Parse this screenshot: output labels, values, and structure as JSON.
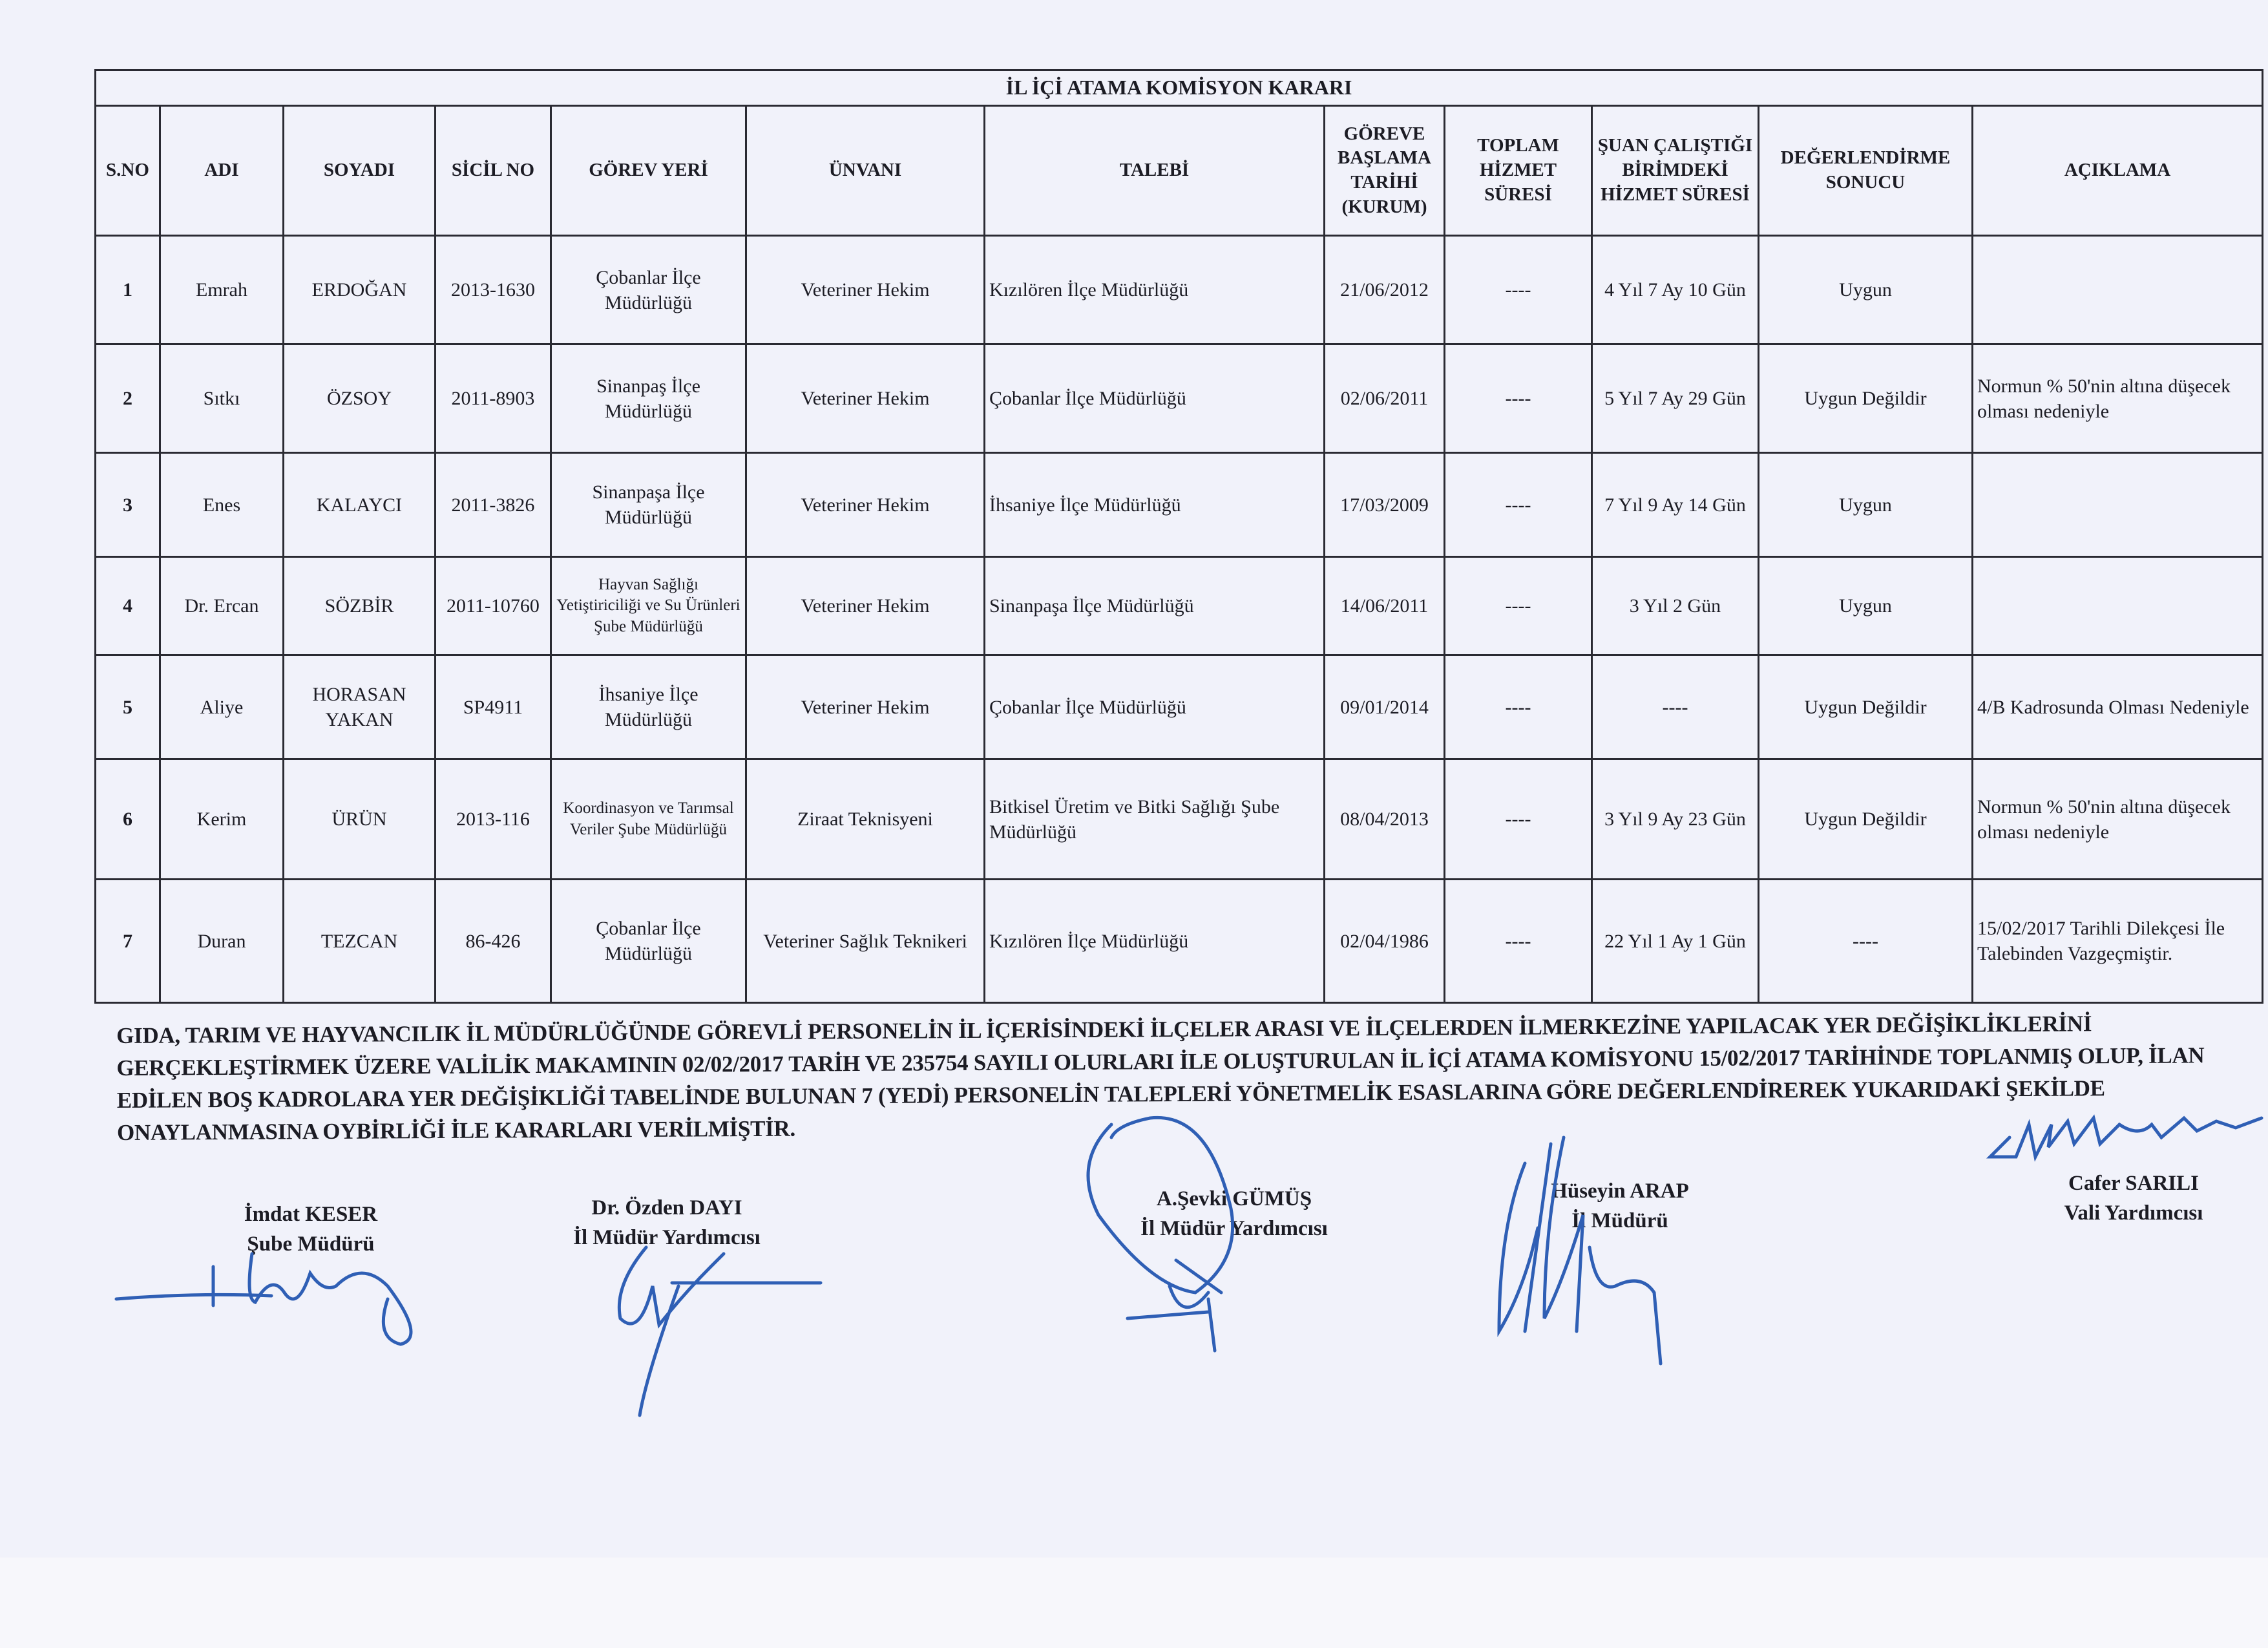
{
  "title": "İL İÇİ ATAMA KOMİSYON KARARI",
  "columns": [
    "S.NO",
    "ADI",
    "SOYADI",
    "SİCİL NO",
    "GÖREV YERİ",
    "ÜNVANI",
    "TALEBİ",
    "GÖREVE BAŞLAMA TARİHİ (KURUM)",
    "TOPLAM HİZMET SÜRESİ",
    "ŞUAN ÇALIŞTIĞI BİRİMDEKİ HİZMET SÜRESİ",
    "DEĞERLENDİRME SONUCU",
    "AÇIKLAMA"
  ],
  "rows": [
    [
      "1",
      "Emrah",
      "ERDOĞAN",
      "2013-1630",
      "Çobanlar İlçe Müdürlüğü",
      "Veteriner Hekim",
      "Kızılören İlçe Müdürlüğü",
      "21/06/2012",
      "----",
      "4 Yıl 7 Ay 10 Gün",
      "Uygun",
      ""
    ],
    [
      "2",
      "Sıtkı",
      "ÖZSOY",
      "2011-8903",
      "Sinanpaş İlçe Müdürlüğü",
      "Veteriner Hekim",
      "Çobanlar İlçe Müdürlüğü",
      "02/06/2011",
      "----",
      "5 Yıl 7 Ay 29 Gün",
      "Uygun Değildir",
      "Normun % 50'nin altına düşecek olması nedeniyle"
    ],
    [
      "3",
      "Enes",
      "KALAYCI",
      "2011-3826",
      "Sinanpaşa İlçe Müdürlüğü",
      "Veteriner Hekim",
      "İhsaniye İlçe Müdürlüğü",
      "17/03/2009",
      "----",
      "7 Yıl 9 Ay 14 Gün",
      "Uygun",
      ""
    ],
    [
      "4",
      "Dr. Ercan",
      "SÖZBİR",
      "2011-10760",
      "Hayvan Sağlığı Yetiştiriciliği ve Su Ürünleri Şube Müdürlüğü",
      "Veteriner Hekim",
      "Sinanpaşa İlçe Müdürlüğü",
      "14/06/2011",
      "----",
      "3 Yıl 2 Gün",
      "Uygun",
      ""
    ],
    [
      "5",
      "Aliye",
      "HORASAN YAKAN",
      "SP4911",
      "İhsaniye İlçe Müdürlüğü",
      "Veteriner Hekim",
      "Çobanlar İlçe Müdürlüğü",
      "09/01/2014",
      "----",
      "----",
      "Uygun Değildir",
      "4/B Kadrosunda Olması Nedeniyle"
    ],
    [
      "6",
      "Kerim",
      "ÜRÜN",
      "2013-116",
      "Koordinasyon ve Tarımsal Veriler Şube Müdürlüğü",
      "Ziraat Teknisyeni",
      "Bitkisel Üretim ve Bitki Sağlığı Şube Müdürlüğü",
      "08/04/2013",
      "----",
      "3 Yıl 9 Ay 23 Gün",
      "Uygun Değildir",
      "Normun % 50'nin altına düşecek olması nedeniyle"
    ],
    [
      "7",
      "Duran",
      "TEZCAN",
      "86-426",
      "Çobanlar İlçe Müdürlüğü",
      "Veteriner Sağlık Teknikeri",
      "Kızılören İlçe Müdürlüğü",
      "02/04/1986",
      "----",
      "22 Yıl 1 Ay 1 Gün",
      "----",
      "15/02/2017 Tarihli Dilekçesi İle Talebinden Vazgeçmiştir."
    ]
  ],
  "paragraph_lines": [
    "GIDA, TARIM VE HAYVANCILIK İL MÜDÜRLÜĞÜNDE GÖREVLİ PERSONELİN İL İÇERİSİNDEKİ İLÇELER ARASI VE İLÇELERDEN İLMERKEZİNE YAPILACAK YER DEĞİŞİKLİKLERİNİ",
    "GERÇEKLEŞTİRMEK ÜZERE VALİLİK MAKAMININ 02/02/2017 TARİH VE 235754 SAYILI OLURLARI İLE OLUŞTURULAN  İL İÇİ ATAMA KOMİSYONU 15/02/2017 TARİHİNDE TOPLANMIŞ  OLUP, İLAN",
    "EDİLEN BOŞ KADROLARA YER DEĞİŞİKLİĞİ TABELİNDE BULUNAN 7 (YEDİ) PERSONELİN TALEPLERİ YÖNETMELİK ESASLARINA GÖRE  DEĞERLENDİREREK YUKARIDAKİ ŞEKİLDE",
    "ONAYLANMASINA OYBİRLİĞİ İLE KARARLARI VERİLMİŞTİR."
  ],
  "signatories": [
    {
      "name": "İmdat KESER",
      "title": "Şube Müdürü"
    },
    {
      "name": "Dr. Özden DAYI",
      "title": "İl Müdür Yardımcısı"
    },
    {
      "name": "A.Şevki GÜMÜŞ",
      "title": "İl Müdür Yardımcısı"
    },
    {
      "name": "Hüseyin ARAP",
      "title": "İl Müdürü"
    },
    {
      "name": "Cafer SARILI",
      "title": "Vali Yardımcısı"
    }
  ],
  "colors": {
    "ink": "#2f5fb5",
    "paper": "#f1f2fa",
    "text": "#1c1c24"
  }
}
